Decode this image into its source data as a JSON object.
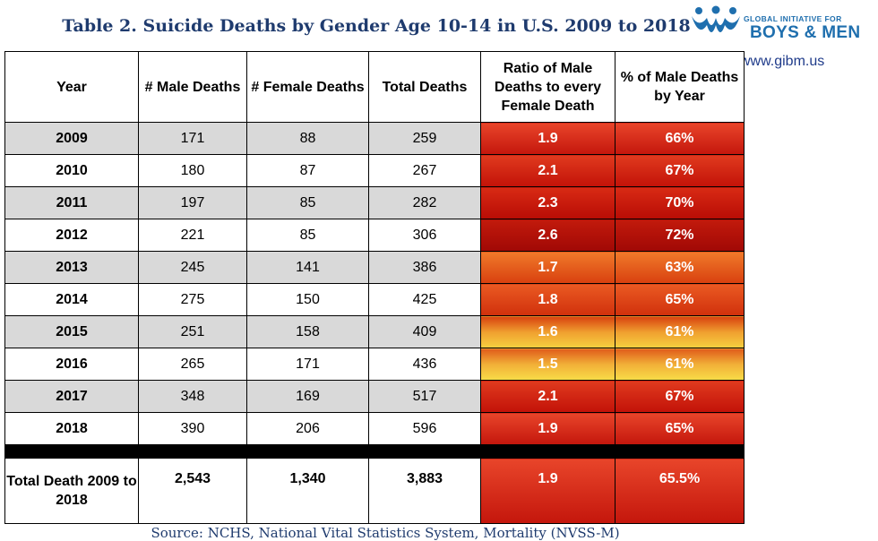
{
  "title": "Table 2. Suicide Deaths by Gender Age 10-14 in U.S. 2009 to 2018",
  "logo": {
    "top_text": "GLOBAL INITIATIVE FOR",
    "bottom_text": "BOYS & MEN"
  },
  "website": "www.gibm.us",
  "table": {
    "headers": {
      "year": "Year",
      "male": "# Male Deaths",
      "female": "# Female Deaths",
      "total": "Total Deaths",
      "ratio": "Ratio of Male Deaths to every Female Death",
      "pct": "% of Male Deaths by Year"
    },
    "rows": [
      {
        "year": "2009",
        "male": "171",
        "female": "88",
        "total": "259",
        "ratio": "1.9",
        "pct": "66%"
      },
      {
        "year": "2010",
        "male": "180",
        "female": "87",
        "total": "267",
        "ratio": "2.1",
        "pct": "67%"
      },
      {
        "year": "2011",
        "male": "197",
        "female": "85",
        "total": "282",
        "ratio": "2.3",
        "pct": "70%"
      },
      {
        "year": "2012",
        "male": "221",
        "female": "85",
        "total": "306",
        "ratio": "2.6",
        "pct": "72%"
      },
      {
        "year": "2013",
        "male": "245",
        "female": "141",
        "total": "386",
        "ratio": "1.7",
        "pct": "63%"
      },
      {
        "year": "2014",
        "male": "275",
        "female": "150",
        "total": "425",
        "ratio": "1.8",
        "pct": "65%"
      },
      {
        "year": "2015",
        "male": "251",
        "female": "158",
        "total": "409",
        "ratio": "1.6",
        "pct": "61%"
      },
      {
        "year": "2016",
        "male": "265",
        "female": "171",
        "total": "436",
        "ratio": "1.5",
        "pct": "61%"
      },
      {
        "year": "2017",
        "male": "348",
        "female": "169",
        "total": "517",
        "ratio": "2.1",
        "pct": "67%"
      },
      {
        "year": "2018",
        "male": "390",
        "female": "206",
        "total": "596",
        "ratio": "1.9",
        "pct": "65%"
      }
    ],
    "total_row": {
      "label": "Total Death 2009 to 2018",
      "male": "2,543",
      "female": "1,340",
      "total": "3,883",
      "ratio": "1.9",
      "pct": "65.5%"
    }
  },
  "colors": {
    "accent": "#1f3b6e",
    "logo": "#1f6fae"
  },
  "source": "Source: NCHS, National Vital Statistics System, Mortality (NVSS-M)"
}
